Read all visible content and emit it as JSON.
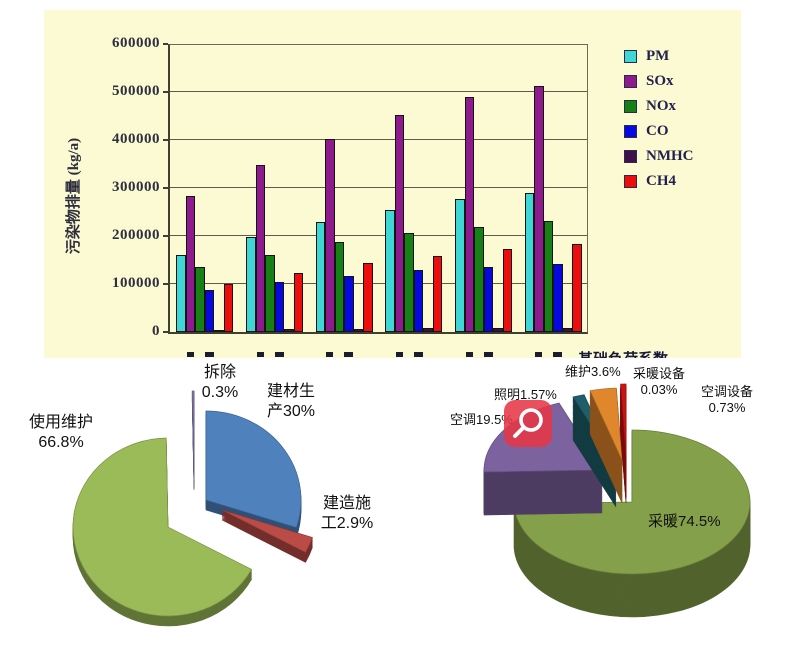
{
  "page": {
    "background": "#FFFFFF"
  },
  "bar_chart": {
    "ylabel": "污染物排量 (kg/a)",
    "corner_note": "基础负荷系数",
    "panel_bg": "#FCFAD2",
    "yticks": [
      "0",
      "100000",
      "200000",
      "300000",
      "400000",
      "500000",
      "600000"
    ],
    "legend": [
      "PM",
      "SOx",
      "NOx",
      "CO",
      "NMHC",
      "CH4"
    ]
  },
  "pie_left": {
    "labels": {
      "demolition": "拆除 0.3%",
      "materials": "建材生产30%",
      "use_maintenance": "使用维护66.8%",
      "construction": "建造施工2.9%"
    }
  },
  "pie_right": {
    "labels": {
      "lighting": "照明1.57%",
      "ac": "空调19.5%",
      "maintenance": "维护3.6%",
      "heating_equipment": "采暖设备 0.03%",
      "ac_equipment": "空调设备 0.73%",
      "heating": "采暖74.5%"
    }
  },
  "overlay": {
    "magnifier_badge_color": "#E63746"
  },
  "chart_data": [
    {
      "type": "bar",
      "title": "",
      "xlabel": "",
      "ylabel": "污染物排量 (kg/a)",
      "ylim": [
        0,
        600000
      ],
      "ytick_step": 100000,
      "grid": true,
      "legend_position": "right",
      "categories": [
        "",
        "",
        "",
        "",
        "",
        ""
      ],
      "series": [
        {
          "name": "PM",
          "color": "#3FD6D6",
          "values": [
            160000,
            197000,
            230000,
            255000,
            277000,
            290000
          ]
        },
        {
          "name": "SOx",
          "color": "#8E1B8E",
          "values": [
            283000,
            348000,
            403000,
            452000,
            490000,
            512000
          ]
        },
        {
          "name": "NOx",
          "color": "#167F16",
          "values": [
            136000,
            161000,
            187000,
            206000,
            219000,
            231000
          ]
        },
        {
          "name": "CO",
          "color": "#0707E0",
          "values": [
            88000,
            104000,
            116000,
            129000,
            136000,
            141000
          ]
        },
        {
          "name": "NMHC",
          "color": "#40104A",
          "values": [
            5000,
            7000,
            7000,
            8000,
            8000,
            8000
          ]
        },
        {
          "name": "CH4",
          "color": "#EE0D0D",
          "values": [
            100000,
            123000,
            143000,
            159000,
            173000,
            183000
          ]
        }
      ]
    },
    {
      "type": "pie",
      "title": "",
      "labels": [
        "建材生产",
        "建造施工",
        "使用维护",
        "拆除"
      ],
      "values": [
        30,
        2.9,
        66.8,
        0.3
      ],
      "colors": [
        "#4F81BD",
        "#BA4B47",
        "#9BBB59",
        "#8477AD"
      ],
      "label_texts": [
        "建材生产30%",
        "建造施工2.9%",
        "使用维护66.8%",
        "拆除 0.3%"
      ]
    },
    {
      "type": "pie",
      "title": "",
      "labels": [
        "采暖",
        "空调",
        "照明",
        "维护",
        "采暖设备",
        "空调设备"
      ],
      "values": [
        74.5,
        19.5,
        1.57,
        3.6,
        0.03,
        0.73
      ],
      "colors": [
        "#85A04A",
        "#7D62A0",
        "#1F5F6B",
        "#E0862C",
        "#8B2520",
        "#CC1212"
      ],
      "label_texts": [
        "采暖74.5%",
        "空调19.5%",
        "照明1.57%",
        "维护3.6%",
        "采暖设备 0.03%",
        "空调设备 0.73%"
      ]
    }
  ]
}
